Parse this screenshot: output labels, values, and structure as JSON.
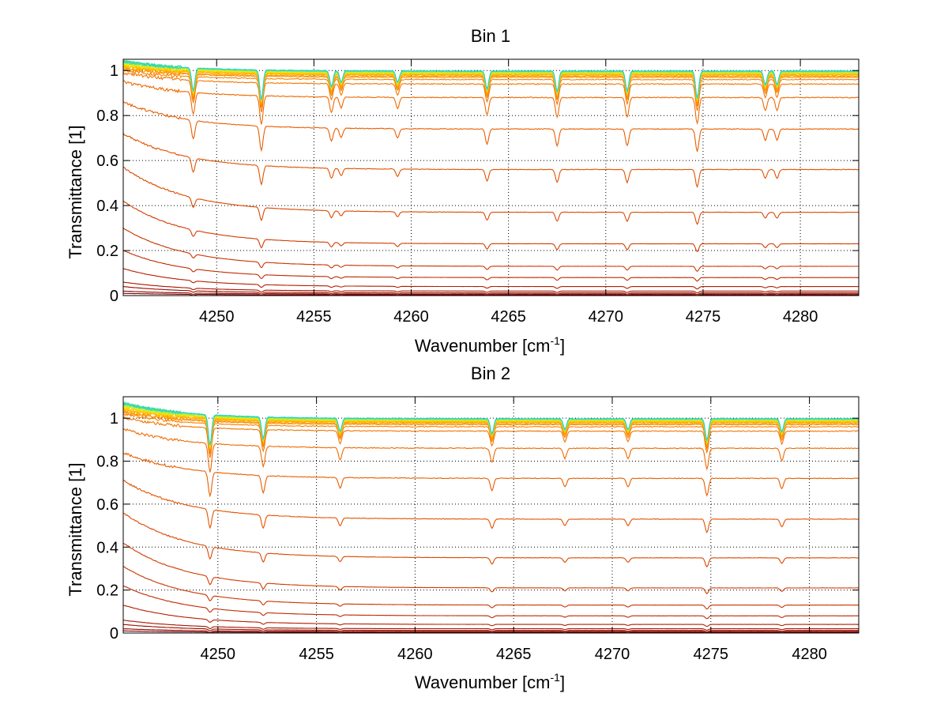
{
  "figure": {
    "background": "#ffffff",
    "grid_color": "#000000"
  },
  "chart_data": [
    {
      "type": "line",
      "title": "Bin 1",
      "xlabel": "Wavenumber [cm",
      "xlabel_sup": "-1",
      "xlabel_end": "]",
      "ylabel": "Transmittance [1]",
      "xlim": [
        4245.2,
        4283
      ],
      "ylim": [
        0,
        1.05
      ],
      "xticks": [
        4250,
        4255,
        4260,
        4265,
        4270,
        4275,
        4280
      ],
      "yticks": [
        0,
        0.2,
        0.4,
        0.6,
        0.8,
        1
      ],
      "ytick_labels": [
        "0",
        "0.2",
        "0.4",
        "0.6",
        "0.8",
        "1"
      ],
      "grid": true,
      "grid_style": "dotted",
      "line_count": 30,
      "baselines": [
        0.003,
        0.007,
        0.012,
        0.02,
        0.04,
        0.08,
        0.13,
        0.23,
        0.37,
        0.56,
        0.74,
        0.88,
        0.94,
        0.96,
        0.97,
        0.975,
        0.98,
        0.983,
        0.985,
        0.987,
        0.989,
        0.99,
        0.991,
        0.992,
        0.993,
        0.994,
        0.995,
        0.996,
        0.997,
        0.998
      ],
      "start_values": [
        0.01,
        0.02,
        0.04,
        0.06,
        0.12,
        0.2,
        0.3,
        0.42,
        0.57,
        0.72,
        0.86,
        0.95,
        0.99,
        1.0,
        1.01,
        1.01,
        1.02,
        1.02,
        1.02,
        1.03,
        1.03,
        1.03,
        1.03,
        1.04,
        1.04,
        1.04,
        1.04,
        1.04,
        1.04,
        1.04
      ],
      "absorption_lines": [
        {
          "x": 4248.8,
          "depth": 0.1
        },
        {
          "x": 4252.3,
          "depth": 0.13
        },
        {
          "x": 4255.9,
          "depth": 0.07
        },
        {
          "x": 4256.4,
          "depth": 0.05
        },
        {
          "x": 4259.3,
          "depth": 0.05
        },
        {
          "x": 4263.9,
          "depth": 0.08
        },
        {
          "x": 4267.5,
          "depth": 0.09
        },
        {
          "x": 4271.1,
          "depth": 0.09
        },
        {
          "x": 4274.7,
          "depth": 0.12
        },
        {
          "x": 4278.2,
          "depth": 0.06
        },
        {
          "x": 4278.8,
          "depth": 0.06
        }
      ],
      "colors": [
        "#7f0000",
        "#8c0700",
        "#990e00",
        "#a61600",
        "#b31f00",
        "#bf2a00",
        "#c93400",
        "#d23d00",
        "#db4800",
        "#e35300",
        "#ea5e00",
        "#f06a00",
        "#f47600",
        "#f88200",
        "#fb8e00",
        "#fd9a00",
        "#ffa600",
        "#ffb300",
        "#ffc000",
        "#ffcd00",
        "#ffda00",
        "#f5e400",
        "#e2ec10",
        "#c8f02a",
        "#aef244",
        "#94f25e",
        "#7aef78",
        "#60e892",
        "#46ddac",
        "#2ccfc6"
      ]
    },
    {
      "type": "line",
      "title": "Bin 2",
      "xlabel": "Wavenumber [cm",
      "xlabel_sup": "-1",
      "xlabel_end": "]",
      "ylabel": "Transmittance [1]",
      "xlim": [
        4245.2,
        4282.5
      ],
      "ylim": [
        0,
        1.1
      ],
      "xticks": [
        4250,
        4255,
        4260,
        4265,
        4270,
        4275,
        4280
      ],
      "yticks": [
        0,
        0.2,
        0.4,
        0.6,
        0.8,
        1
      ],
      "ytick_labels": [
        "0",
        "0.2",
        "0.4",
        "0.6",
        "0.8",
        "1"
      ],
      "grid": true,
      "grid_style": "dotted",
      "line_count": 30,
      "baselines": [
        0.003,
        0.007,
        0.012,
        0.02,
        0.04,
        0.08,
        0.13,
        0.21,
        0.35,
        0.53,
        0.72,
        0.86,
        0.94,
        0.96,
        0.97,
        0.975,
        0.98,
        0.983,
        0.985,
        0.987,
        0.989,
        0.99,
        0.991,
        0.992,
        0.993,
        0.994,
        0.995,
        0.996,
        0.997,
        0.998
      ],
      "start_values": [
        0.01,
        0.02,
        0.04,
        0.06,
        0.13,
        0.22,
        0.31,
        0.42,
        0.56,
        0.71,
        0.84,
        0.95,
        1.0,
        1.02,
        1.03,
        1.03,
        1.04,
        1.04,
        1.05,
        1.05,
        1.05,
        1.06,
        1.06,
        1.06,
        1.06,
        1.07,
        1.07,
        1.07,
        1.07,
        1.07
      ],
      "absorption_lines": [
        {
          "x": 4249.6,
          "depth": 0.14
        },
        {
          "x": 4252.3,
          "depth": 0.1
        },
        {
          "x": 4256.2,
          "depth": 0.06
        },
        {
          "x": 4263.9,
          "depth": 0.07
        },
        {
          "x": 4267.6,
          "depth": 0.05
        },
        {
          "x": 4270.8,
          "depth": 0.05
        },
        {
          "x": 4274.8,
          "depth": 0.1
        },
        {
          "x": 4278.6,
          "depth": 0.06
        }
      ],
      "colors": [
        "#7f0000",
        "#8c0700",
        "#990e00",
        "#a61600",
        "#b31f00",
        "#bf2a00",
        "#c93400",
        "#d23d00",
        "#db4800",
        "#e35300",
        "#ea5e00",
        "#f06a00",
        "#f47600",
        "#f88200",
        "#fb8e00",
        "#fd9a00",
        "#ffa600",
        "#ffb300",
        "#ffc000",
        "#ffcd00",
        "#ffda00",
        "#f5e400",
        "#e2ec10",
        "#c8f02a",
        "#aef244",
        "#94f25e",
        "#7aef78",
        "#60e892",
        "#46ddac",
        "#2ccfc6"
      ]
    }
  ]
}
